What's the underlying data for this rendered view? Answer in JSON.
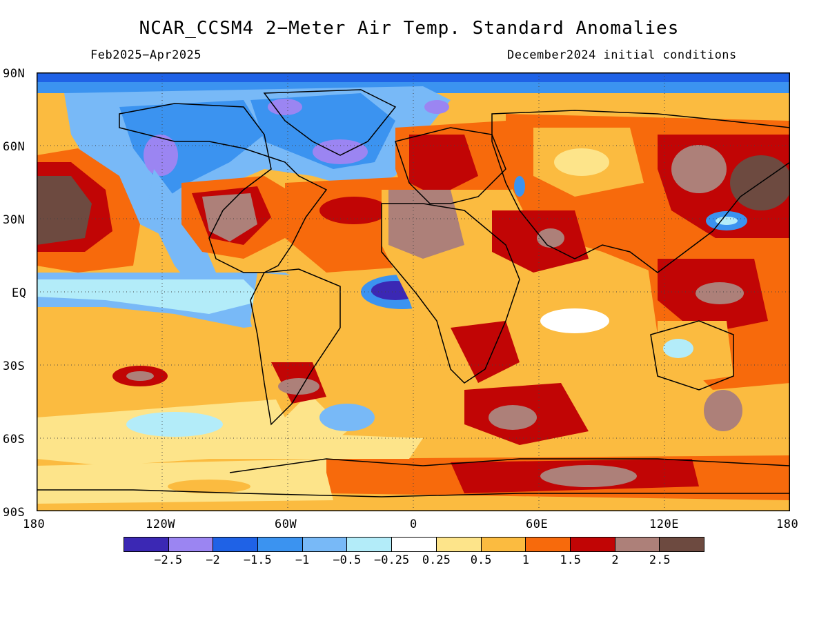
{
  "map": {
    "title": "NCAR_CCSM4 2−Meter Air Temp. Standard Anomalies",
    "period": "Feb2025−Apr2025",
    "initial_conditions": "December2024 initial conditions",
    "projection": "equirectangular",
    "longitude_range": [
      -180,
      180
    ],
    "latitude_range": [
      -90,
      90
    ],
    "grid_lines": "dotted",
    "x_ticks": [
      "180",
      "120W",
      "60W",
      "0",
      "60E",
      "120E",
      "180"
    ],
    "y_ticks": [
      "90N",
      "60N",
      "30N",
      "EQ",
      "30S",
      "60S",
      "90S"
    ],
    "colorbar": {
      "levels": [
        "−2.5",
        "−2",
        "−1.5",
        "−1",
        "−0.5",
        "−0.25",
        "0.25",
        "0.5",
        "1",
        "1.5",
        "2",
        "2.5"
      ],
      "colors": [
        "#3b28b4",
        "#9b85f2",
        "#1f62e6",
        "#3b93f0",
        "#78b9f7",
        "#b3ecf9",
        "#ffffff",
        "#fde48a",
        "#fbbb40",
        "#f76a0c",
        "#c10505",
        "#ad8079",
        "#6d4a40"
      ]
    }
  }
}
